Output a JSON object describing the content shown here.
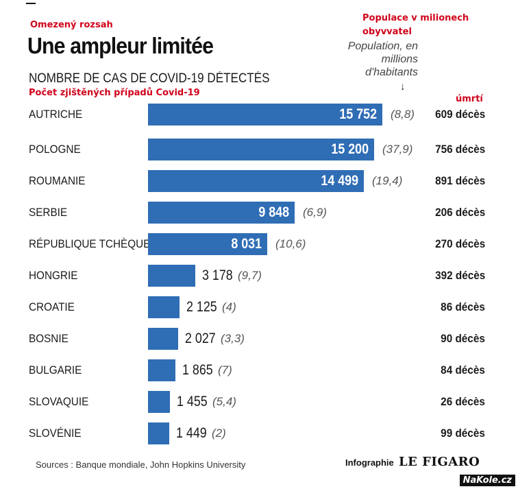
{
  "annotations_cz": {
    "title": "Omezený rozsah",
    "population": "Populace v milionech obyvvatel",
    "subtitle": "Počet zjištěných případů Covid-19",
    "deaths": "úmrtí"
  },
  "chart_data": {
    "type": "bar",
    "orientation": "horizontal",
    "title": "Une ampleur limitée",
    "subtitle": "NOMBRE DE CAS DE COVID-19 DÉTECTÉS",
    "population_note": "Population, en millions d'habitants",
    "arrow": "↓",
    "categories": [
      "AUTRICHE",
      "POLOGNE",
      "ROUMANIE",
      "SERBIE",
      "RÉPUBLIQUE TCHÈQUE",
      "HONGRIE",
      "CROATIE",
      "BOSNIE",
      "BULGARIE",
      "SLOVAQUIE",
      "SLOVÉNIE"
    ],
    "values": [
      15752,
      15200,
      14499,
      9848,
      8031,
      3178,
      2125,
      2027,
      1865,
      1455,
      1449
    ],
    "value_labels": [
      "15 752",
      "15 200",
      "14 499",
      "9 848",
      "8 031",
      "3 178",
      "2 125",
      "2 027",
      "1 865",
      "1 455",
      "1 449"
    ],
    "population": [
      "(8,8)",
      "(37,9)",
      "(19,4)",
      "(6,9)",
      "(10,6)",
      "(9,7)",
      "(4)",
      "(3,3)",
      "(7)",
      "(5,4)",
      "(2)"
    ],
    "deaths": [
      "609 décès",
      "756 décès",
      "891 décès",
      "206 décès",
      "270 décès",
      "392 décès",
      "86 décès",
      "90 décès",
      "84 décès",
      "26 décès",
      "99 décès"
    ],
    "bar_color": "#2f6db5",
    "xlim": [
      0,
      15752
    ],
    "grid": false
  },
  "footer": {
    "sources": "Sources : Banque mondiale, John Hopkins University",
    "infographie": "Infographie",
    "publisher": "LE FIGARO"
  },
  "watermark": "NaKole.cz"
}
